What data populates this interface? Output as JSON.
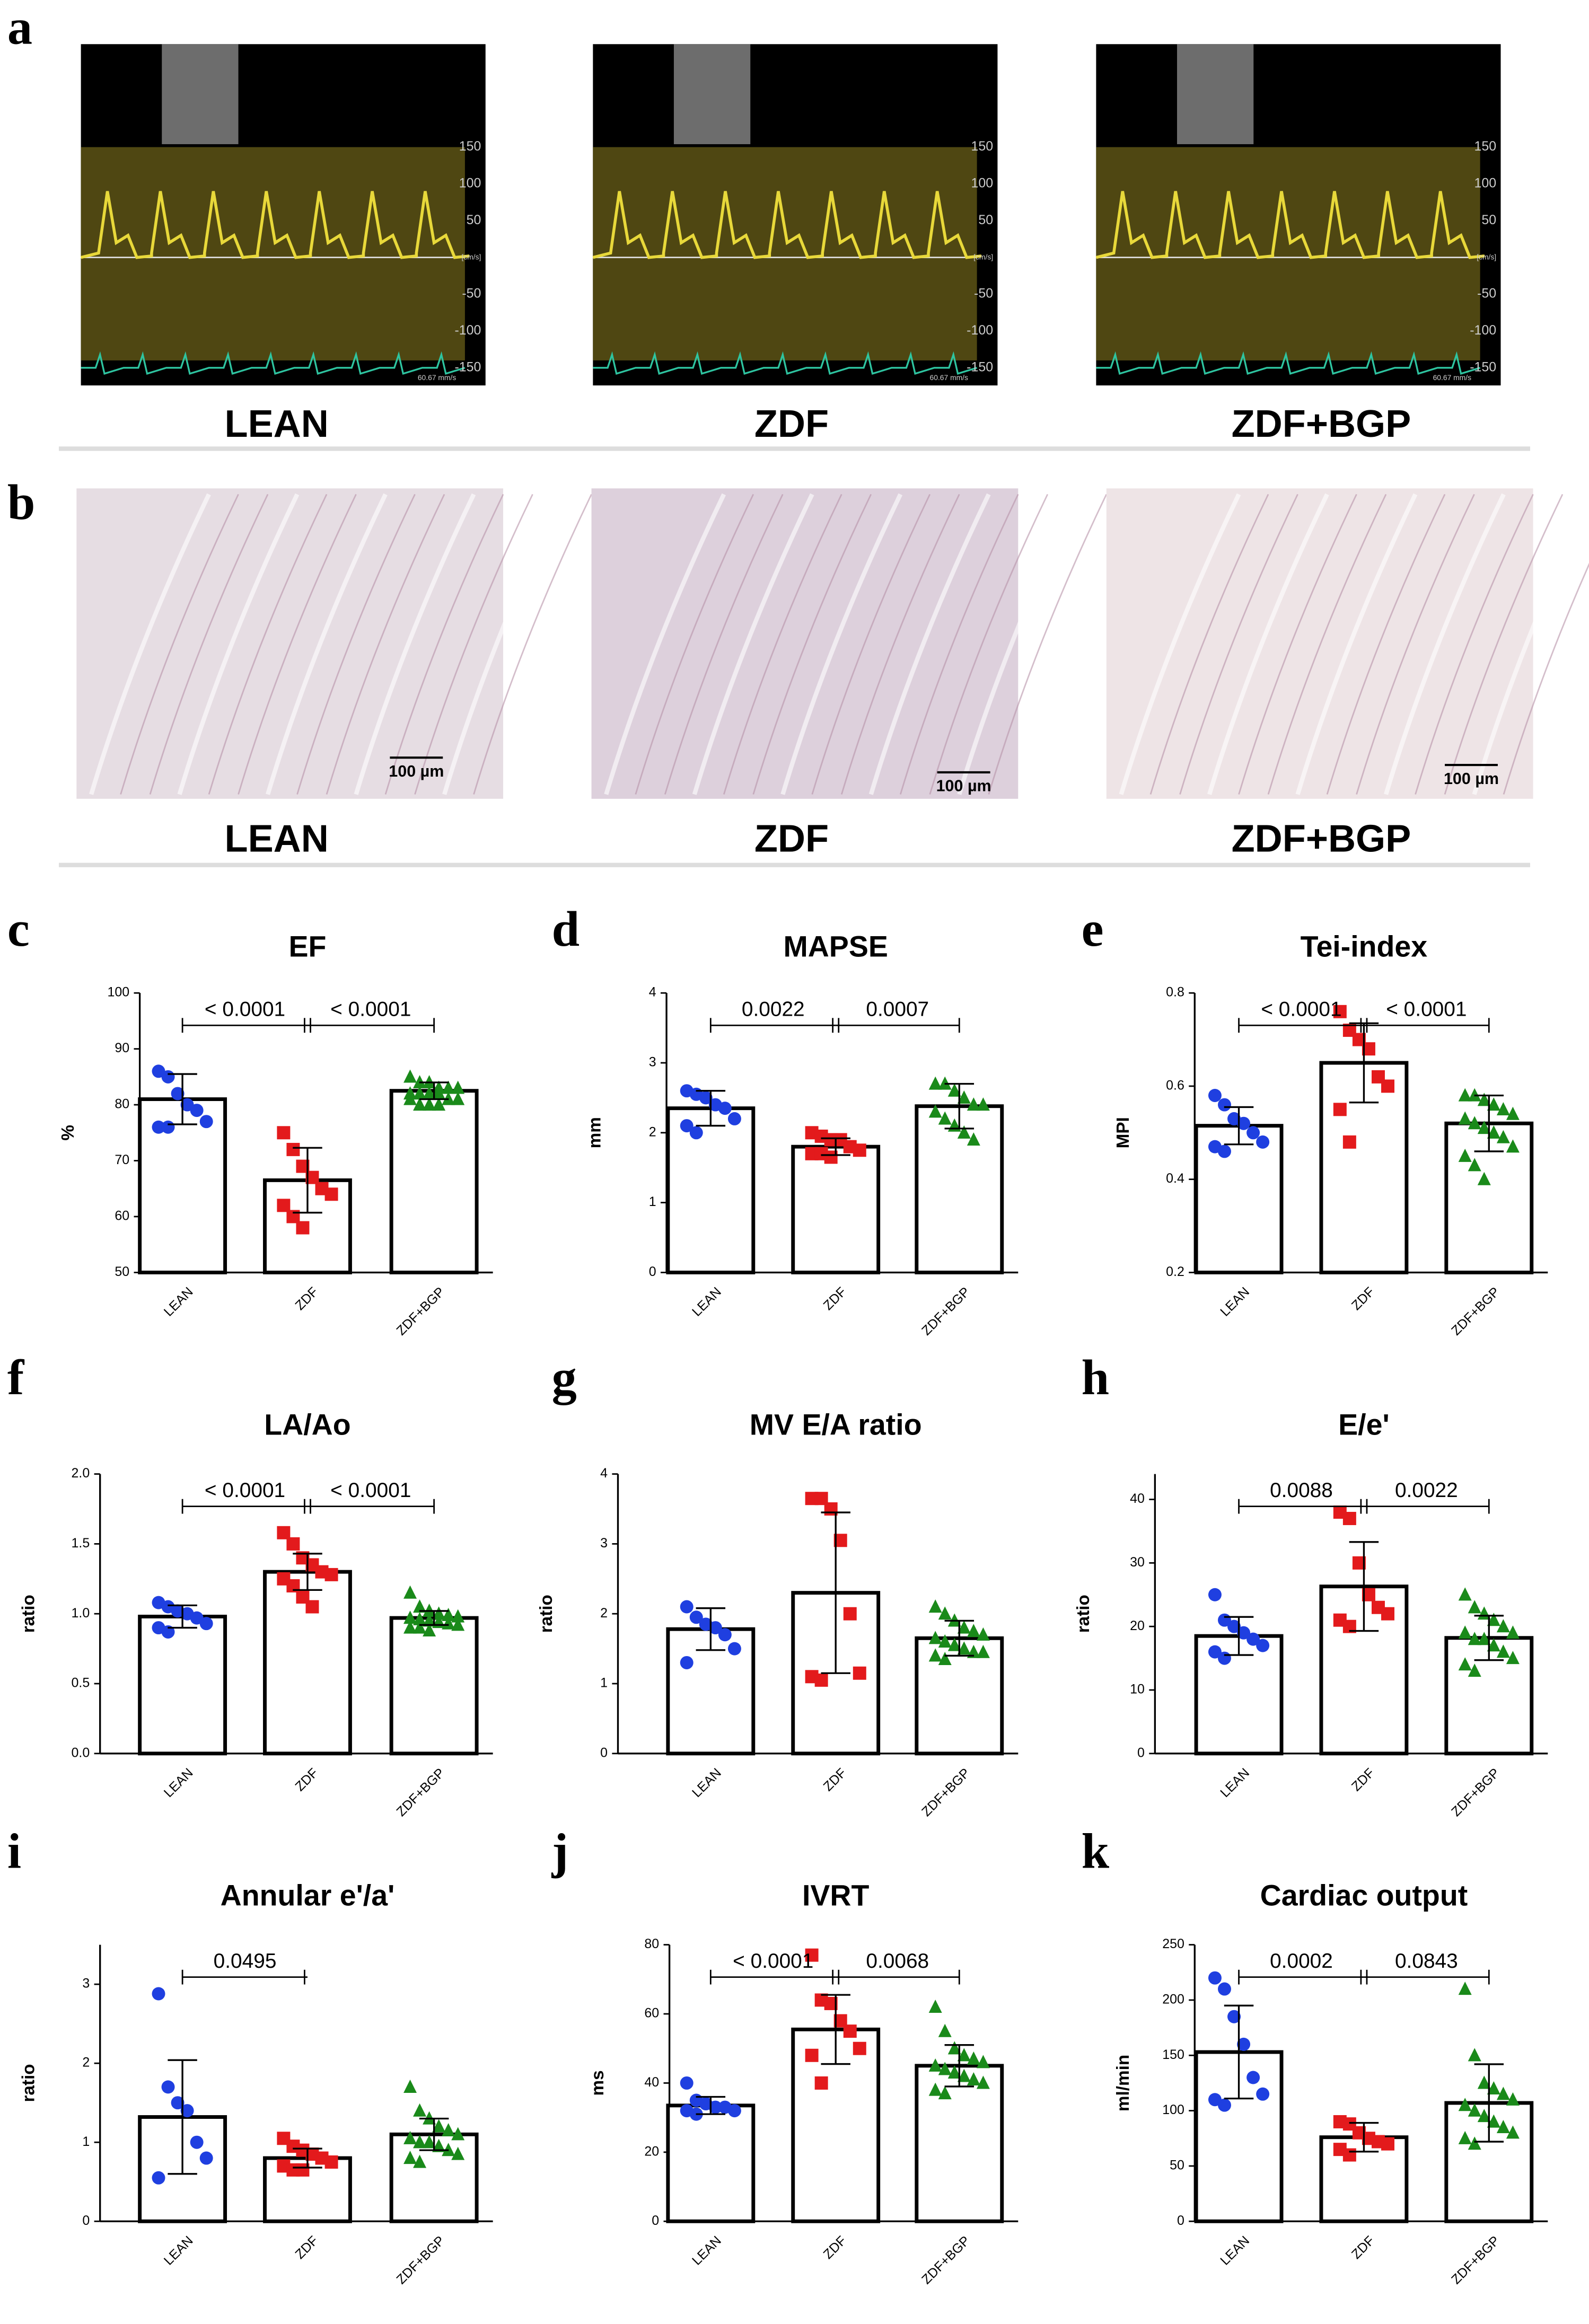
{
  "figure": {
    "a": {
      "letter": "a",
      "groups": [
        "LEAN",
        "ZDF",
        "ZDF+BGP"
      ],
      "doppler_ticks": [
        150,
        100,
        50,
        -50,
        -100,
        -150
      ],
      "doppler_unit": "[cm/s]",
      "sweep": "60.67 mm/s"
    },
    "b": {
      "letter": "b",
      "groups": [
        "LEAN",
        "ZDF",
        "ZDF+BGP"
      ],
      "scale_bar": "100 µm"
    }
  },
  "chart_data": [
    {
      "type": "bar",
      "panel": "c",
      "title": "EF",
      "ylabel": "%",
      "categories": [
        "LEAN",
        "ZDF",
        "ZDF+BGP"
      ],
      "values": [
        81,
        66.5,
        82.5
      ],
      "errors": [
        4.5,
        5.8,
        1.5
      ],
      "points": [
        [
          86,
          85,
          82,
          80,
          79,
          77,
          76,
          76
        ],
        [
          75,
          72,
          69,
          67,
          65,
          64,
          62,
          60,
          58
        ],
        [
          85,
          84,
          84,
          83,
          83,
          83,
          82,
          82,
          82,
          82,
          81,
          81,
          81,
          80,
          80,
          80
        ]
      ],
      "colors": [
        "#1f3fe0",
        "#e31a1c",
        "#1a8a1a"
      ],
      "markers": [
        "circle",
        "square",
        "triangle"
      ],
      "ylim": [
        50,
        100
      ],
      "yticks": [
        50,
        60,
        70,
        80,
        90,
        100
      ],
      "annotations": [
        {
          "between": [
            0,
            1
          ],
          "label": "< 0.0001"
        },
        {
          "between": [
            1,
            2
          ],
          "label": "< 0.0001"
        }
      ]
    },
    {
      "type": "bar",
      "panel": "d",
      "title": "MAPSE",
      "ylabel": "mm",
      "categories": [
        "LEAN",
        "ZDF",
        "ZDF+BGP"
      ],
      "values": [
        2.35,
        1.8,
        2.38
      ],
      "errors": [
        0.25,
        0.12,
        0.32
      ],
      "points": [
        [
          2.6,
          2.55,
          2.5,
          2.4,
          2.35,
          2.2,
          2.1,
          2.0
        ],
        [
          2.0,
          1.95,
          1.9,
          1.9,
          1.8,
          1.75,
          1.7,
          1.7,
          1.65
        ],
        [
          2.7,
          2.7,
          2.6,
          2.5,
          2.4,
          2.4,
          2.3,
          2.2,
          2.1,
          2.0,
          1.9
        ]
      ],
      "colors": [
        "#1f3fe0",
        "#e31a1c",
        "#1a8a1a"
      ],
      "markers": [
        "circle",
        "square",
        "triangle"
      ],
      "ylim": [
        0,
        4
      ],
      "yticks": [
        0,
        1,
        2,
        3,
        4
      ],
      "annotations": [
        {
          "between": [
            0,
            1
          ],
          "label": "0.0022"
        },
        {
          "between": [
            1,
            2
          ],
          "label": "0.0007"
        }
      ]
    },
    {
      "type": "bar",
      "panel": "e",
      "title": "Tei-index",
      "ylabel": "MPI",
      "categories": [
        "LEAN",
        "ZDF",
        "ZDF+BGP"
      ],
      "values": [
        0.515,
        0.65,
        0.52
      ],
      "errors": [
        0.04,
        0.085,
        0.06
      ],
      "points": [
        [
          0.58,
          0.56,
          0.53,
          0.52,
          0.5,
          0.48,
          0.47,
          0.46
        ],
        [
          0.76,
          0.72,
          0.7,
          0.68,
          0.62,
          0.6,
          0.55,
          0.48
        ],
        [
          0.58,
          0.58,
          0.57,
          0.56,
          0.55,
          0.54,
          0.53,
          0.52,
          0.51,
          0.5,
          0.49,
          0.47,
          0.45,
          0.43,
          0.4
        ]
      ],
      "colors": [
        "#1f3fe0",
        "#e31a1c",
        "#1a8a1a"
      ],
      "markers": [
        "circle",
        "square",
        "triangle"
      ],
      "ylim": [
        0.2,
        0.8
      ],
      "yticks": [
        0.2,
        0.4,
        0.6,
        0.8
      ],
      "annotations": [
        {
          "between": [
            0,
            1
          ],
          "label": "< 0.0001"
        },
        {
          "between": [
            1,
            2
          ],
          "label": "< 0.0001"
        }
      ]
    },
    {
      "type": "bar",
      "panel": "f",
      "title": "LA/Ao",
      "ylabel": "ratio",
      "categories": [
        "LEAN",
        "ZDF",
        "ZDF+BGP"
      ],
      "values": [
        0.98,
        1.3,
        0.97
      ],
      "errors": [
        0.08,
        0.13,
        0.05
      ],
      "points": [
        [
          1.08,
          1.05,
          1.02,
          1.0,
          0.97,
          0.93,
          0.9,
          0.87
        ],
        [
          1.58,
          1.5,
          1.4,
          1.35,
          1.3,
          1.28,
          1.25,
          1.2,
          1.12,
          1.05
        ],
        [
          1.15,
          1.05,
          1.02,
          1.0,
          0.99,
          0.98,
          0.97,
          0.96,
          0.95,
          0.94,
          0.93,
          0.92,
          0.9,
          0.9,
          0.88
        ]
      ],
      "colors": [
        "#1f3fe0",
        "#e31a1c",
        "#1a8a1a"
      ],
      "markers": [
        "circle",
        "square",
        "triangle"
      ],
      "ylim": [
        0,
        2
      ],
      "yticks": [
        {
          "value": 0,
          "label": "0.0"
        },
        0.5,
        {
          "value": 1,
          "label": "1.0"
        },
        1.5,
        {
          "value": 2,
          "label": "2.0"
        }
      ],
      "annotations": [
        {
          "between": [
            0,
            1
          ],
          "label": "< 0.0001"
        },
        {
          "between": [
            1,
            2
          ],
          "label": "< 0.0001"
        }
      ]
    },
    {
      "type": "bar",
      "panel": "g",
      "title": "MV E/A ratio",
      "ylabel": "ratio",
      "categories": [
        "LEAN",
        "ZDF",
        "ZDF+BGP"
      ],
      "values": [
        1.78,
        2.3,
        1.65
      ],
      "errors": [
        0.3,
        1.15,
        0.25
      ],
      "points": [
        [
          2.1,
          1.95,
          1.85,
          1.8,
          1.7,
          1.5,
          1.3
        ],
        [
          3.65,
          3.65,
          3.5,
          3.05,
          2.0,
          1.15,
          1.1,
          1.05
        ],
        [
          2.1,
          2.0,
          1.9,
          1.8,
          1.75,
          1.7,
          1.65,
          1.6,
          1.55,
          1.5,
          1.45,
          1.45,
          1.4,
          1.35
        ]
      ],
      "colors": [
        "#1f3fe0",
        "#e31a1c",
        "#1a8a1a"
      ],
      "markers": [
        "circle",
        "square",
        "triangle"
      ],
      "ylim": [
        0,
        4
      ],
      "yticks": [
        0,
        1,
        2,
        3,
        4
      ],
      "annotations": []
    },
    {
      "type": "bar",
      "panel": "h",
      "title": "E/e'",
      "ylabel": "ratio",
      "categories": [
        "LEAN",
        "ZDF",
        "ZDF+BGP"
      ],
      "values": [
        18.5,
        26.3,
        18.2
      ],
      "errors": [
        3,
        7,
        3.5
      ],
      "points": [
        [
          25,
          21,
          20,
          19,
          18,
          17,
          16,
          15
        ],
        [
          38,
          37,
          30,
          25,
          23,
          22,
          21,
          20
        ],
        [
          25,
          23,
          22,
          21,
          20,
          19,
          19,
          18,
          18,
          17,
          16,
          15,
          14,
          13
        ]
      ],
      "colors": [
        "#1f3fe0",
        "#e31a1c",
        "#1a8a1a"
      ],
      "markers": [
        "circle",
        "square",
        "triangle"
      ],
      "ylim": [
        0,
        44
      ],
      "yticks": [
        0,
        10,
        20,
        30,
        40
      ],
      "annotations": [
        {
          "between": [
            0,
            1
          ],
          "label": "0.0088"
        },
        {
          "between": [
            1,
            2
          ],
          "label": "0.0022"
        }
      ]
    },
    {
      "type": "bar",
      "panel": "i",
      "title": "Annular e'/a'",
      "ylabel": "ratio",
      "categories": [
        "LEAN",
        "ZDF",
        "ZDF+BGP"
      ],
      "values": [
        1.32,
        0.8,
        1.1
      ],
      "errors": [
        0.72,
        0.12,
        0.2
      ],
      "points": [
        [
          2.88,
          1.7,
          1.5,
          1.4,
          1.0,
          0.8,
          0.55
        ],
        [
          1.05,
          0.95,
          0.9,
          0.85,
          0.8,
          0.75,
          0.7,
          0.65,
          0.65
        ],
        [
          1.7,
          1.4,
          1.3,
          1.2,
          1.15,
          1.1,
          1.05,
          1.0,
          1.0,
          0.95,
          0.9,
          0.85,
          0.8,
          0.75
        ]
      ],
      "colors": [
        "#1f3fe0",
        "#e31a1c",
        "#1a8a1a"
      ],
      "markers": [
        "circle",
        "square",
        "triangle"
      ],
      "ylim": [
        0,
        3.5
      ],
      "yticks": [
        0,
        1,
        2,
        3
      ],
      "annotations": [
        {
          "between": [
            0,
            1
          ],
          "label": "0.0495"
        }
      ]
    },
    {
      "type": "bar",
      "panel": "j",
      "title": "IVRT",
      "ylabel": "ms",
      "categories": [
        "LEAN",
        "ZDF",
        "ZDF+BGP"
      ],
      "values": [
        33.5,
        55.5,
        45
      ],
      "errors": [
        2.5,
        10,
        6
      ],
      "points": [
        [
          40,
          35,
          34,
          33,
          33,
          32,
          32,
          31
        ],
        [
          77,
          64,
          63,
          58,
          55,
          50,
          48,
          40
        ],
        [
          62,
          55,
          50,
          48,
          47,
          46,
          45,
          44,
          43,
          42,
          41,
          40,
          38,
          37
        ]
      ],
      "colors": [
        "#1f3fe0",
        "#e31a1c",
        "#1a8a1a"
      ],
      "markers": [
        "circle",
        "square",
        "triangle"
      ],
      "ylim": [
        0,
        80
      ],
      "yticks": [
        0,
        20,
        40,
        60,
        80
      ],
      "annotations": [
        {
          "between": [
            0,
            1
          ],
          "label": "< 0.0001"
        },
        {
          "between": [
            1,
            2
          ],
          "label": "0.0068"
        }
      ]
    },
    {
      "type": "bar",
      "panel": "k",
      "title": "Cardiac output",
      "ylabel": "ml/min",
      "categories": [
        "LEAN",
        "ZDF",
        "ZDF+BGP"
      ],
      "values": [
        153,
        76,
        107
      ],
      "errors": [
        42,
        13,
        35
      ],
      "points": [
        [
          220,
          210,
          185,
          160,
          130,
          115,
          110,
          105
        ],
        [
          90,
          88,
          80,
          75,
          72,
          70,
          65,
          60
        ],
        [
          210,
          150,
          125,
          120,
          115,
          110,
          105,
          100,
          95,
          90,
          85,
          80,
          75,
          70
        ]
      ],
      "colors": [
        "#1f3fe0",
        "#e31a1c",
        "#1a8a1a"
      ],
      "markers": [
        "circle",
        "square",
        "triangle"
      ],
      "ylim": [
        0,
        250
      ],
      "yticks": [
        0,
        50,
        100,
        150,
        200,
        250
      ],
      "annotations": [
        {
          "between": [
            0,
            1
          ],
          "label": "0.0002"
        },
        {
          "between": [
            1,
            2
          ],
          "label": "0.0843"
        }
      ]
    }
  ]
}
